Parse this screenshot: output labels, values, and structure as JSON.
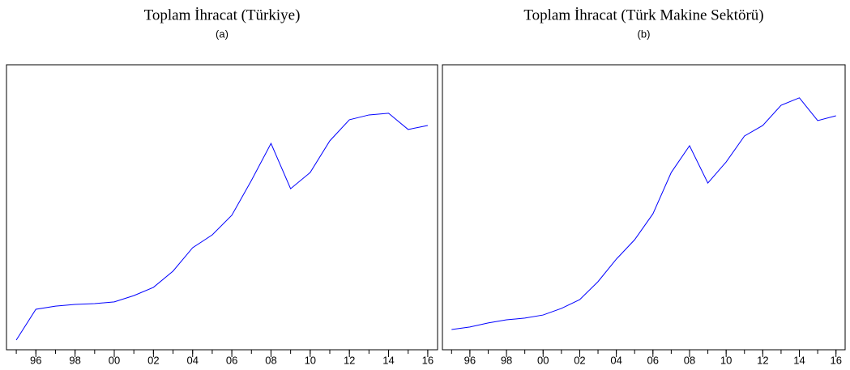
{
  "chart_data": [
    {
      "type": "line",
      "title": "Toplam İhracat (Türkiye)",
      "subtitle": "(a)",
      "x": [
        1995,
        1996,
        1997,
        1998,
        1999,
        2000,
        2001,
        2002,
        2003,
        2004,
        2005,
        2006,
        2007,
        2008,
        2009,
        2010,
        2011,
        2012,
        2013,
        2014,
        2015,
        2016
      ],
      "series": [
        {
          "color": "#0000ff",
          "values": [
            3.4,
            14.2,
            15.3,
            15.9,
            16.2,
            16.8,
            19.0,
            21.9,
            27.6,
            35.8,
            40.3,
            47.2,
            59.4,
            72.4,
            56.5,
            62.2,
            73.3,
            80.7,
            82.4,
            83.0,
            77.3,
            78.7
          ]
        }
      ],
      "xlim": [
        1994.5,
        2016.5
      ],
      "ylim": [
        0,
        100
      ],
      "xticks": [
        {
          "value": 1996,
          "label": "96"
        },
        {
          "value": 1998,
          "label": "98"
        },
        {
          "value": 2000,
          "label": "00"
        },
        {
          "value": 2002,
          "label": "02"
        },
        {
          "value": 2004,
          "label": "04"
        },
        {
          "value": 2006,
          "label": "06"
        },
        {
          "value": 2008,
          "label": "08"
        },
        {
          "value": 2010,
          "label": "10"
        },
        {
          "value": 2012,
          "label": "12"
        },
        {
          "value": 2014,
          "label": "14"
        },
        {
          "value": 2016,
          "label": "16"
        }
      ]
    },
    {
      "type": "line",
      "title": "Toplam İhracat (Türk Makine Sektörü)",
      "subtitle": "(b)",
      "x": [
        1995,
        1996,
        1997,
        1998,
        1999,
        2000,
        2001,
        2002,
        2003,
        2004,
        2005,
        2006,
        2007,
        2008,
        2009,
        2010,
        2011,
        2012,
        2013,
        2014,
        2015,
        2016
      ],
      "series": [
        {
          "color": "#0000ff",
          "values": [
            7.1,
            8.0,
            9.4,
            10.5,
            11.1,
            12.2,
            14.5,
            17.6,
            23.9,
            31.8,
            38.6,
            47.7,
            62.2,
            71.6,
            58.5,
            65.9,
            75.0,
            78.7,
            85.8,
            88.4,
            80.4,
            82.1
          ]
        }
      ],
      "xlim": [
        1994.5,
        2016.5
      ],
      "ylim": [
        0,
        100
      ],
      "xticks": [
        {
          "value": 1996,
          "label": "96"
        },
        {
          "value": 1998,
          "label": "98"
        },
        {
          "value": 2000,
          "label": "00"
        },
        {
          "value": 2002,
          "label": "02"
        },
        {
          "value": 2004,
          "label": "04"
        },
        {
          "value": 2006,
          "label": "06"
        },
        {
          "value": 2008,
          "label": "08"
        },
        {
          "value": 2010,
          "label": "10"
        },
        {
          "value": 2012,
          "label": "12"
        },
        {
          "value": 2014,
          "label": "14"
        },
        {
          "value": 2016,
          "label": "16"
        }
      ]
    }
  ]
}
